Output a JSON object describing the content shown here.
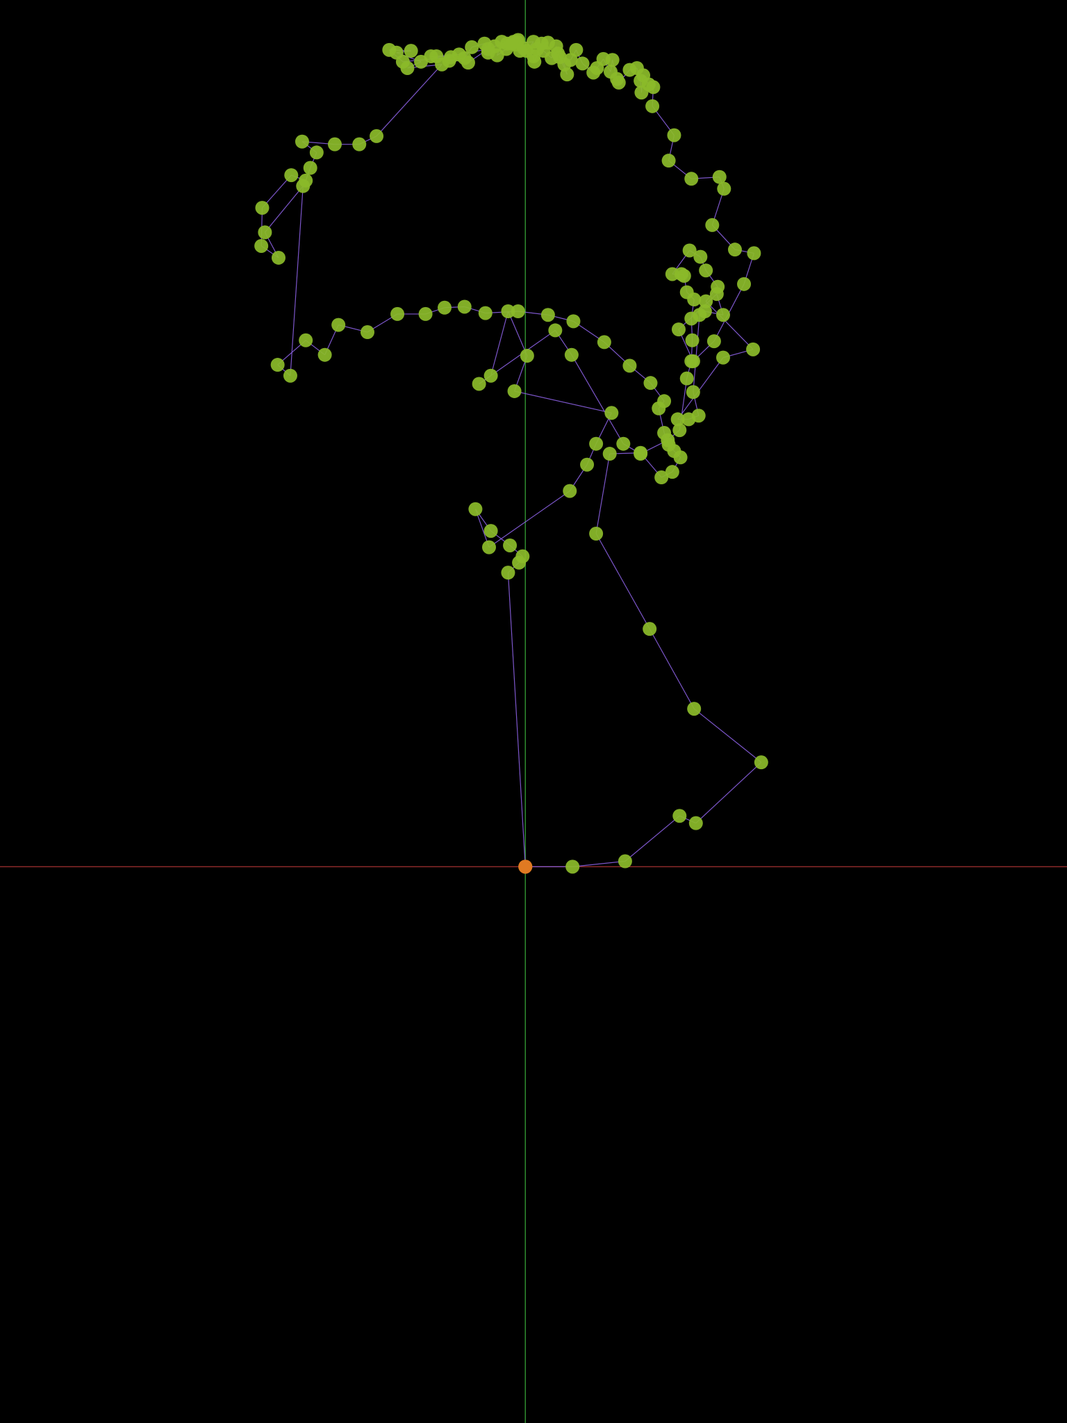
{
  "colors": {
    "background": "#000000",
    "x_axis": "#8c2a2a",
    "y_axis": "#2e8b2e",
    "path": "#8a5fe0",
    "positive_point": "#8bba2a",
    "negative_point": "#d6232a",
    "origin_point": "#e07a22"
  },
  "chart_data": {
    "type": "scatter",
    "title": "",
    "xlabel": "",
    "ylabel": "",
    "xlim": [
      -579,
      597
    ],
    "ylim": [
      -613,
      955
    ],
    "grid": false,
    "legend": "none",
    "connected_path": true,
    "origin": [
      0,
      0
    ],
    "series": [
      {
        "values": [
          [
            0,
            0
          ],
          [
            52,
            0
          ],
          [
            110,
            6
          ],
          [
            170,
            56
          ],
          [
            188,
            48
          ],
          [
            260,
            115
          ],
          [
            186,
            174
          ],
          [
            137,
            262
          ],
          [
            78,
            367
          ],
          [
            93,
            455
          ],
          [
            127,
            456
          ],
          [
            150,
            429
          ],
          [
            162,
            435
          ],
          [
            171,
            451
          ],
          [
            164,
            458
          ],
          [
            158,
            465
          ],
          [
            153,
            478
          ],
          [
            147,
            505
          ],
          [
            153,
            513
          ],
          [
            138,
            533
          ],
          [
            115,
            552
          ],
          [
            87,
            578
          ],
          [
            53,
            601
          ],
          [
            25,
            608
          ],
          [
            -8,
            612
          ],
          [
            -44,
            610
          ],
          [
            -67,
            617
          ],
          [
            -89,
            616
          ],
          [
            -110,
            609
          ],
          [
            -141,
            609
          ],
          [
            -174,
            589
          ],
          [
            -206,
            597
          ],
          [
            -221,
            564
          ],
          [
            -242,
            580
          ],
          [
            -273,
            553
          ],
          [
            -259,
            541
          ],
          [
            -245,
            750
          ],
          [
            -287,
            699
          ],
          [
            -272,
            671
          ],
          [
            -291,
            684
          ],
          [
            -290,
            726
          ],
          [
            -258,
            762
          ],
          [
            -242,
            756
          ],
          [
            -237,
            770
          ],
          [
            -230,
            787
          ],
          [
            -246,
            799
          ],
          [
            -210,
            796
          ],
          [
            -183,
            796
          ],
          [
            -164,
            805
          ],
          [
            -92,
            884
          ],
          [
            -130,
            880
          ],
          [
            -115,
            887
          ],
          [
            -142,
            897
          ],
          [
            -126,
            899
          ],
          [
            -150,
            900
          ],
          [
            -135,
            887
          ],
          [
            -82,
            892
          ],
          [
            -98,
            893
          ],
          [
            -73,
            895
          ],
          [
            -41,
            901
          ],
          [
            -63,
            886
          ],
          [
            -104,
            893
          ],
          [
            -84,
            888
          ],
          [
            -67,
            891
          ],
          [
            -59,
            903
          ],
          [
            -45,
            907
          ],
          [
            -41,
            897
          ],
          [
            -34,
            904
          ],
          [
            -20,
            907
          ],
          [
            -11,
            906
          ],
          [
            -6,
            899
          ],
          [
            -13,
            909
          ],
          [
            -26,
            909
          ],
          [
            -31,
            894
          ],
          [
            -21,
            901
          ],
          [
            -9,
            909
          ],
          [
            -2,
            902
          ],
          [
            -8,
            911
          ],
          [
            -15,
            907
          ],
          [
            9,
            909
          ],
          [
            1,
            899
          ],
          [
            9,
            893
          ],
          [
            10,
            887
          ],
          [
            18,
            907
          ],
          [
            25,
            908
          ],
          [
            13,
            901
          ],
          [
            20,
            899
          ],
          [
            29,
            891
          ],
          [
            34,
            904
          ],
          [
            36,
            896
          ],
          [
            43,
            884
          ],
          [
            46,
            873
          ],
          [
            38,
            892
          ],
          [
            50,
            889
          ],
          [
            56,
            900
          ],
          [
            63,
            885
          ],
          [
            75,
            875
          ],
          [
            79,
            880
          ],
          [
            86,
            890
          ],
          [
            94,
            876
          ],
          [
            96,
            889
          ],
          [
            101,
            868
          ],
          [
            103,
            864
          ],
          [
            115,
            878
          ],
          [
            123,
            880
          ],
          [
            127,
            866
          ],
          [
            128,
            853
          ],
          [
            130,
            872
          ],
          [
            136,
            862
          ],
          [
            141,
            859
          ],
          [
            140,
            838
          ],
          [
            164,
            806
          ],
          [
            158,
            778
          ],
          [
            183,
            758
          ],
          [
            214,
            760
          ],
          [
            219,
            747
          ],
          [
            206,
            707
          ],
          [
            231,
            680
          ],
          [
            252,
            676
          ],
          [
            241,
            642
          ],
          [
            208,
            579
          ],
          [
            185,
            557
          ],
          [
            169,
            592
          ],
          [
            211,
            631
          ],
          [
            218,
            608
          ],
          [
            198,
            612
          ],
          [
            192,
            608
          ],
          [
            185,
            523
          ],
          [
            191,
            497
          ],
          [
            180,
            493
          ],
          [
            168,
            493
          ],
          [
            218,
            561
          ],
          [
            251,
            570
          ],
          [
            199,
            623
          ],
          [
            212,
            639
          ],
          [
            199,
            657
          ],
          [
            193,
            672
          ],
          [
            181,
            679
          ],
          [
            162,
            653
          ],
          [
            172,
            653
          ],
          [
            175,
            651
          ],
          [
            178,
            633
          ],
          [
            186,
            625
          ],
          [
            183,
            604
          ],
          [
            184,
            580
          ],
          [
            183,
            557
          ],
          [
            178,
            538
          ],
          [
            170,
            481
          ],
          [
            157,
            470
          ],
          [
            127,
            455
          ],
          [
            108,
            466
          ],
          [
            51,
            564
          ],
          [
            33,
            591
          ],
          [
            -51,
            532
          ],
          [
            -38,
            541
          ],
          [
            -19,
            612
          ],
          [
            2,
            563
          ],
          [
            -12,
            524
          ],
          [
            95,
            500
          ],
          [
            78,
            466
          ],
          [
            68,
            443
          ],
          [
            49,
            414
          ],
          [
            -40,
            352
          ],
          [
            -55,
            394
          ],
          [
            -38,
            370
          ],
          [
            -17,
            354
          ],
          [
            -3,
            342
          ],
          [
            -7,
            335
          ],
          [
            -19,
            324
          ],
          [
            0,
            0
          ]
        ]
      }
    ]
  }
}
